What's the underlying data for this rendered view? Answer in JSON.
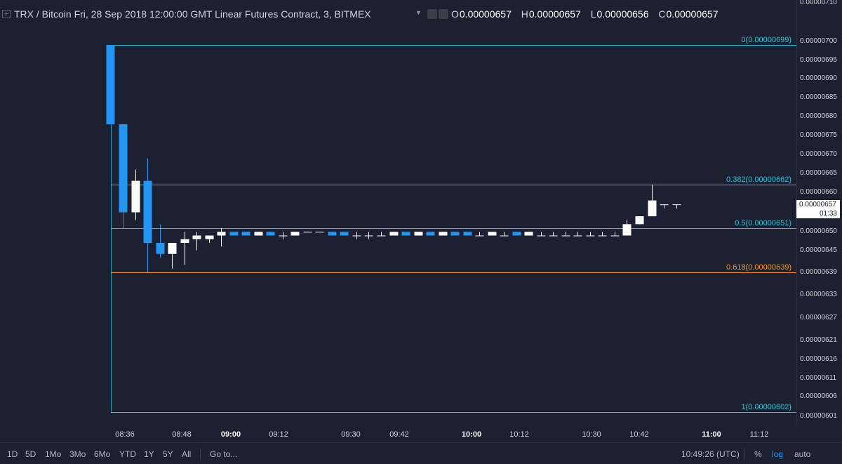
{
  "header": {
    "title": "TRX / Bitcoin Fri, 28 Sep 2018 12:00:00 GMT Linear Futures Contract, 3, BITMEX",
    "ohlc": [
      {
        "key": "O",
        "value": "0.00000657"
      },
      {
        "key": "H",
        "value": "0.00000657"
      },
      {
        "key": "L",
        "value": "0.00000656"
      },
      {
        "key": "C",
        "value": "0.00000657"
      }
    ]
  },
  "chart_data": {
    "type": "candlestick",
    "colors": {
      "up": "#ffffff",
      "down": "#2196f3",
      "fib_line": "#26c6da",
      "fib_618": "#ff9800",
      "background": "#1c2030"
    },
    "y_axis_labels": [
      "0.00000710",
      "0.00000700",
      "0.00000695",
      "0.00000690",
      "0.00000685",
      "0.00000680",
      "0.00000675",
      "0.00000670",
      "0.00000665",
      "0.00000660",
      "0.00000650",
      "0.00000645",
      "0.00000639",
      "0.00000633",
      "0.00000627",
      "0.00000621",
      "0.00000616",
      "0.00000611",
      "0.00000606",
      "0.00000601"
    ],
    "x_axis_labels": [
      {
        "label": "08:36",
        "bold": false
      },
      {
        "label": "08:48",
        "bold": false
      },
      {
        "label": "09:00",
        "bold": true
      },
      {
        "label": "09:12",
        "bold": false
      },
      {
        "label": "09:30",
        "bold": false
      },
      {
        "label": "09:42",
        "bold": false
      },
      {
        "label": "10:00",
        "bold": true
      },
      {
        "label": "10:12",
        "bold": false
      },
      {
        "label": "10:30",
        "bold": false
      },
      {
        "label": "10:42",
        "bold": false
      },
      {
        "label": "11:00",
        "bold": true
      },
      {
        "label": "11:12",
        "bold": false
      }
    ],
    "fibonacci": [
      {
        "level": "0",
        "price": "0.00000699",
        "label": "0(0.00000699)",
        "color": "#26c6da"
      },
      {
        "level": "0.382",
        "price": "0.00000662",
        "label": "0.382(0.00000662)",
        "color": "#26c6da"
      },
      {
        "level": "0.5",
        "price": "0.00000651",
        "label": "0.5(0.00000651)",
        "color": "#26c6da"
      },
      {
        "level": "0.618",
        "price": "0.00000639",
        "label": "0.618(0.00000639)",
        "color": "#ff9800"
      },
      {
        "level": "1",
        "price": "0.00000602",
        "label": "1(0.00000602)",
        "color": "#26c6da"
      }
    ],
    "fib_anchor_x": "08:36",
    "candles": [
      {
        "t": "08:33",
        "o": 6.99e-06,
        "h": 6.99e-06,
        "l": 6.78e-06,
        "c": 6.78e-06
      },
      {
        "t": "08:36",
        "o": 6.78e-06,
        "h": 6.78e-06,
        "l": 6.51e-06,
        "c": 6.55e-06
      },
      {
        "t": "08:39",
        "o": 6.55e-06,
        "h": 6.66e-06,
        "l": 6.53e-06,
        "c": 6.63e-06
      },
      {
        "t": "08:42",
        "o": 6.63e-06,
        "h": 6.69e-06,
        "l": 6.39e-06,
        "c": 6.47e-06
      },
      {
        "t": "08:45",
        "o": 6.47e-06,
        "h": 6.52e-06,
        "l": 6.43e-06,
        "c": 6.44e-06
      },
      {
        "t": "08:48",
        "o": 6.44e-06,
        "h": 6.47e-06,
        "l": 6.4e-06,
        "c": 6.47e-06
      },
      {
        "t": "08:51",
        "o": 6.47e-06,
        "h": 6.5e-06,
        "l": 6.41e-06,
        "c": 6.48e-06
      },
      {
        "t": "08:54",
        "o": 6.48e-06,
        "h": 6.5e-06,
        "l": 6.45e-06,
        "c": 6.49e-06
      },
      {
        "t": "08:57",
        "o": 6.48e-06,
        "h": 6.49e-06,
        "l": 6.47e-06,
        "c": 6.49e-06
      },
      {
        "t": "09:00",
        "o": 6.49e-06,
        "h": 6.51e-06,
        "l": 6.46e-06,
        "c": 6.5e-06
      },
      {
        "t": "09:03",
        "o": 6.5e-06,
        "h": 6.5e-06,
        "l": 6.49e-06,
        "c": 6.49e-06
      },
      {
        "t": "09:06",
        "o": 6.5e-06,
        "h": 6.5e-06,
        "l": 6.49e-06,
        "c": 6.49e-06
      },
      {
        "t": "09:09",
        "o": 6.49e-06,
        "h": 6.5e-06,
        "l": 6.49e-06,
        "c": 6.5e-06
      },
      {
        "t": "09:12",
        "o": 6.5e-06,
        "h": 6.5e-06,
        "l": 6.49e-06,
        "c": 6.49e-06
      },
      {
        "t": "09:15",
        "o": 6.49e-06,
        "h": 6.5e-06,
        "l": 6.48e-06,
        "c": 6.49e-06
      },
      {
        "t": "09:18",
        "o": 6.49e-06,
        "h": 6.5e-06,
        "l": 6.49e-06,
        "c": 6.5e-06
      },
      {
        "t": "09:21",
        "o": 6.5e-06,
        "h": 6.5e-06,
        "l": 6.5e-06,
        "c": 6.5e-06
      },
      {
        "t": "09:24",
        "o": 6.5e-06,
        "h": 6.5e-06,
        "l": 6.5e-06,
        "c": 6.5e-06
      },
      {
        "t": "09:27",
        "o": 6.5e-06,
        "h": 6.5e-06,
        "l": 6.49e-06,
        "c": 6.49e-06
      },
      {
        "t": "09:30",
        "o": 6.5e-06,
        "h": 6.5e-06,
        "l": 6.49e-06,
        "c": 6.49e-06
      },
      {
        "t": "09:33",
        "o": 6.49e-06,
        "h": 6.5e-06,
        "l": 6.48e-06,
        "c": 6.49e-06
      },
      {
        "t": "09:36",
        "o": 6.49e-06,
        "h": 6.5e-06,
        "l": 6.48e-06,
        "c": 6.49e-06
      },
      {
        "t": "09:39",
        "o": 6.49e-06,
        "h": 6.5e-06,
        "l": 6.49e-06,
        "c": 6.49e-06
      },
      {
        "t": "09:42",
        "o": 6.49e-06,
        "h": 6.5e-06,
        "l": 6.49e-06,
        "c": 6.5e-06
      },
      {
        "t": "09:45",
        "o": 6.5e-06,
        "h": 6.5e-06,
        "l": 6.49e-06,
        "c": 6.49e-06
      },
      {
        "t": "09:48",
        "o": 6.49e-06,
        "h": 6.5e-06,
        "l": 6.49e-06,
        "c": 6.5e-06
      },
      {
        "t": "09:51",
        "o": 6.5e-06,
        "h": 6.5e-06,
        "l": 6.49e-06,
        "c": 6.49e-06
      },
      {
        "t": "09:54",
        "o": 6.49e-06,
        "h": 6.5e-06,
        "l": 6.49e-06,
        "c": 6.5e-06
      },
      {
        "t": "09:57",
        "o": 6.5e-06,
        "h": 6.5e-06,
        "l": 6.49e-06,
        "c": 6.49e-06
      },
      {
        "t": "10:00",
        "o": 6.5e-06,
        "h": 6.5e-06,
        "l": 6.49e-06,
        "c": 6.49e-06
      },
      {
        "t": "10:03",
        "o": 6.49e-06,
        "h": 6.5e-06,
        "l": 6.49e-06,
        "c": 6.49e-06
      },
      {
        "t": "10:06",
        "o": 6.49e-06,
        "h": 6.5e-06,
        "l": 6.49e-06,
        "c": 6.5e-06
      },
      {
        "t": "10:09",
        "o": 6.49e-06,
        "h": 6.5e-06,
        "l": 6.49e-06,
        "c": 6.49e-06
      },
      {
        "t": "10:12",
        "o": 6.5e-06,
        "h": 6.5e-06,
        "l": 6.49e-06,
        "c": 6.49e-06
      },
      {
        "t": "10:15",
        "o": 6.49e-06,
        "h": 6.5e-06,
        "l": 6.49e-06,
        "c": 6.5e-06
      },
      {
        "t": "10:18",
        "o": 6.49e-06,
        "h": 6.5e-06,
        "l": 6.49e-06,
        "c": 6.49e-06
      },
      {
        "t": "10:21",
        "o": 6.49e-06,
        "h": 6.5e-06,
        "l": 6.49e-06,
        "c": 6.49e-06
      },
      {
        "t": "10:24",
        "o": 6.49e-06,
        "h": 6.5e-06,
        "l": 6.49e-06,
        "c": 6.49e-06
      },
      {
        "t": "10:27",
        "o": 6.49e-06,
        "h": 6.5e-06,
        "l": 6.49e-06,
        "c": 6.49e-06
      },
      {
        "t": "10:30",
        "o": 6.49e-06,
        "h": 6.5e-06,
        "l": 6.49e-06,
        "c": 6.49e-06
      },
      {
        "t": "10:33",
        "o": 6.49e-06,
        "h": 6.5e-06,
        "l": 6.49e-06,
        "c": 6.49e-06
      },
      {
        "t": "10:36",
        "o": 6.49e-06,
        "h": 6.5e-06,
        "l": 6.49e-06,
        "c": 6.49e-06
      },
      {
        "t": "10:39",
        "o": 6.49e-06,
        "h": 6.53e-06,
        "l": 6.49e-06,
        "c": 6.52e-06
      },
      {
        "t": "10:42",
        "o": 6.52e-06,
        "h": 6.54e-06,
        "l": 6.52e-06,
        "c": 6.54e-06
      },
      {
        "t": "10:45",
        "o": 6.54e-06,
        "h": 6.62e-06,
        "l": 6.54e-06,
        "c": 6.58e-06
      },
      {
        "t": "10:48",
        "o": 6.57e-06,
        "h": 6.57e-06,
        "l": 6.56e-06,
        "c": 6.57e-06
      },
      {
        "t": "10:51",
        "o": 6.57e-06,
        "h": 6.57e-06,
        "l": 6.56e-06,
        "c": 6.57e-06
      }
    ],
    "current_price": {
      "label": "0.00000657",
      "countdown": "01:33"
    }
  },
  "toolbar": {
    "ranges": [
      "1D",
      "5D",
      "1Mo",
      "3Mo",
      "6Mo",
      "YTD",
      "1Y",
      "5Y",
      "All"
    ],
    "goto_label": "Go to...",
    "time": "10:49:26 (UTC)",
    "percent_label": "%",
    "log_label": "log",
    "auto_label": "auto"
  }
}
